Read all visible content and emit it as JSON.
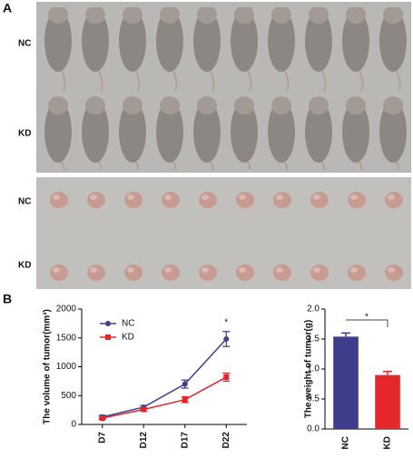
{
  "figure": {
    "panel_a": "A",
    "panel_b": "B",
    "photo_labels": [
      "NC",
      "KD",
      "NC",
      "KD"
    ]
  },
  "chart_data": [
    {
      "type": "line",
      "ylabel": "The volume of tumor(mm³)",
      "categories": [
        "D7",
        "D12",
        "D17",
        "D22"
      ],
      "series": [
        {
          "name": "NC",
          "color": "#3e3e8e",
          "marker": "circle",
          "values": [
            130,
            300,
            700,
            1480
          ],
          "errors": [
            30,
            30,
            70,
            130
          ]
        },
        {
          "name": "KD",
          "color": "#e5262b",
          "marker": "square",
          "values": [
            110,
            260,
            430,
            820
          ],
          "errors": [
            20,
            25,
            50,
            70
          ]
        }
      ],
      "ylim": [
        0,
        2000
      ],
      "yticks": [
        0,
        500,
        1000,
        1500,
        2000
      ],
      "annotation": "*"
    },
    {
      "type": "bar",
      "ylabel": "The weight of tumor(g)",
      "categories": [
        "NC",
        "KD"
      ],
      "values": [
        1.54,
        0.9
      ],
      "errors": [
        0.06,
        0.06
      ],
      "colors": [
        "#3d3d8c",
        "#e5262b"
      ],
      "ylim": [
        0,
        2
      ],
      "yticks": [
        {
          "value": 0,
          "label": "0.0"
        },
        0.5,
        {
          "value": 1,
          "label": "1.0"
        },
        1.5,
        {
          "value": 2,
          "label": "2.0"
        }
      ],
      "annotation": "*"
    }
  ]
}
